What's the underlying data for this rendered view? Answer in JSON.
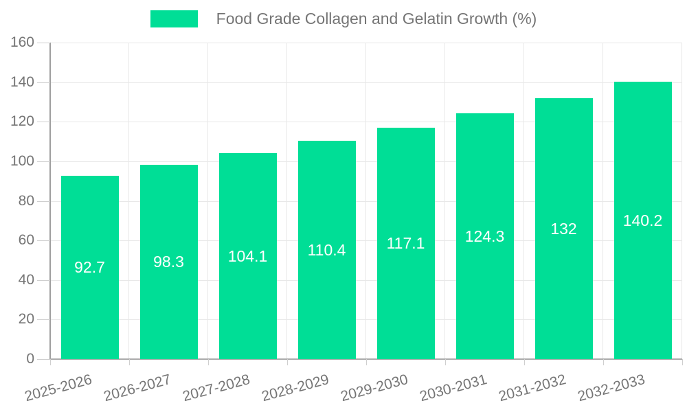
{
  "chart_data": {
    "type": "bar",
    "title": "Food Grade Collagen and Gelatin Growth (%)",
    "categories": [
      "2025-2026",
      "2026-2027",
      "2027-2028",
      "2028-2029",
      "2029-2030",
      "2030-2031",
      "2031-2032",
      "2032-2033"
    ],
    "values": [
      92.7,
      98.3,
      104.1,
      110.4,
      117.1,
      124.3,
      132,
      140.2
    ],
    "bar_labels": [
      "92.7",
      "98.3",
      "104.1",
      "110.4",
      "117.1",
      "124.3",
      "132",
      "140.2"
    ],
    "xlabel": "",
    "ylabel": "",
    "ylim": [
      0,
      160
    ],
    "ytick_step": 20,
    "ytick_labels": [
      "0",
      "20",
      "40",
      "60",
      "80",
      "100",
      "120",
      "140",
      "160"
    ],
    "grid": true,
    "legend_position": "top-center",
    "colors": {
      "bar": "#00DE96",
      "bar_label": "#ffffff",
      "axis_text": "#757575",
      "gridline": "#e8e8e8",
      "y_axis_line": "#9e9e9e",
      "x_axis_line": "#ababab",
      "tick": "#cfcfcf",
      "background": "#ffffff"
    }
  }
}
